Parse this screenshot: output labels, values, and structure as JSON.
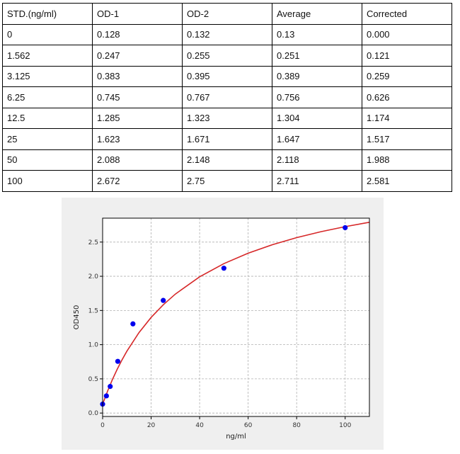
{
  "table": {
    "headers": [
      "STD.(ng/ml)",
      "OD-1",
      "OD-2",
      "Average",
      "Corrected"
    ],
    "rows": [
      [
        "0",
        "0.128",
        "0.132",
        "0.13",
        "0.000"
      ],
      [
        "1.562",
        "0.247",
        "0.255",
        "0.251",
        "0.121"
      ],
      [
        "3.125",
        "0.383",
        "0.395",
        "0.389",
        "0.259"
      ],
      [
        "6.25",
        "0.745",
        "0.767",
        "0.756",
        "0.626"
      ],
      [
        "12.5",
        "1.285",
        "1.323",
        "1.304",
        "1.174"
      ],
      [
        "25",
        "1.623",
        "1.671",
        "1.647",
        "1.517"
      ],
      [
        "50",
        "2.088",
        "2.148",
        "2.118",
        "1.988"
      ],
      [
        "100",
        "2.672",
        "2.75",
        "2.711",
        "2.581"
      ]
    ]
  },
  "chart_data": {
    "type": "scatter",
    "xlabel": "ng/ml",
    "ylabel": "OD450",
    "xlim": [
      0,
      110
    ],
    "ylim": [
      -0.05,
      2.85
    ],
    "xticks": [
      0,
      20,
      40,
      60,
      80,
      100
    ],
    "xtick_labels": [
      "0",
      "20",
      "40",
      "60",
      "80",
      "100"
    ],
    "yticks": [
      0.0,
      0.5,
      1.0,
      1.5,
      2.0,
      2.5
    ],
    "ytick_labels": [
      "0.0",
      "0.5",
      "1.0",
      "1.5",
      "2.0",
      "2.5"
    ],
    "grid": true,
    "series": [
      {
        "kind": "points",
        "x": [
          0,
          1.562,
          3.125,
          6.25,
          12.5,
          25,
          50,
          100
        ],
        "y": [
          0.13,
          0.251,
          0.389,
          0.756,
          1.304,
          1.647,
          2.118,
          2.711
        ],
        "color": "#0000ee"
      },
      {
        "kind": "fitted-curve",
        "x": [
          0,
          2,
          4,
          6,
          8,
          10,
          15,
          20,
          25,
          30,
          40,
          50,
          60,
          70,
          80,
          90,
          100,
          110
        ],
        "y": [
          0.13,
          0.318,
          0.487,
          0.64,
          0.778,
          0.905,
          1.176,
          1.398,
          1.583,
          1.74,
          1.992,
          2.185,
          2.337,
          2.462,
          2.565,
          2.652,
          2.726,
          2.79
        ],
        "color": "#d62728"
      }
    ]
  }
}
